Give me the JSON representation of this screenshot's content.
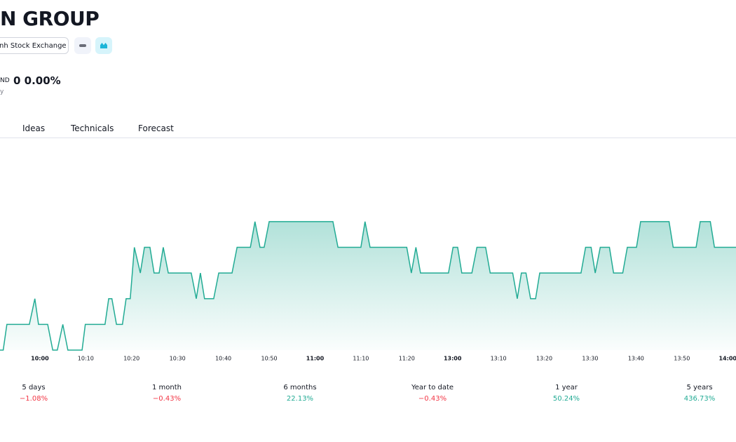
{
  "header": {
    "title": "N GROUP",
    "exchange": "nh Stock Exchange",
    "currency": "ND",
    "price_change": "0 0.00%",
    "note": "y"
  },
  "tabs": [
    "Ideas",
    "Technicals",
    "Forecast"
  ],
  "chart_data": {
    "type": "line",
    "color": "#22ab94",
    "x": [
      -8.7,
      -8,
      -7.2,
      -2.3,
      -1.1,
      -0.3,
      1.7,
      2.8,
      3.8,
      5,
      6.1,
      9.2,
      9.9,
      14.2,
      15,
      15.7,
      16.7,
      18,
      18.8,
      19.7,
      20.6,
      21.9,
      22.8,
      24,
      24.9,
      26,
      26.9,
      28,
      33,
      34.1,
      35,
      35.9,
      37.9,
      39,
      41.9,
      43,
      45.9,
      46.9,
      48,
      48.9,
      50,
      63.9,
      65,
      70,
      70.9,
      72,
      80,
      81,
      82,
      83,
      89.1,
      90.1,
      91.1,
      92,
      94.2,
      95.3,
      97.2,
      98.2,
      103.1,
      104.1,
      105,
      106,
      107,
      108.1,
      109,
      118,
      119,
      120.2,
      121.1,
      122.2,
      124.2,
      125.1,
      127.1,
      128.1,
      130.1,
      131,
      137.2,
      138.1,
      143.1,
      144,
      146.2,
      147.1,
      151.8
    ],
    "values": [
      0,
      0,
      1,
      1,
      2,
      1,
      1,
      0,
      0,
      1,
      0,
      0,
      1,
      1,
      2,
      2,
      1,
      1,
      2,
      2,
      4,
      3,
      4,
      4,
      3,
      3,
      4,
      3,
      3,
      2,
      3,
      2,
      2,
      3,
      3,
      4,
      4,
      5,
      4,
      4,
      5,
      5,
      4,
      4,
      5,
      4,
      4,
      3,
      4,
      3,
      3,
      4,
      4,
      3,
      3,
      4,
      4,
      3,
      3,
      2,
      3,
      3,
      2,
      2,
      3,
      3,
      4,
      4,
      3,
      4,
      4,
      3,
      3,
      4,
      4,
      5,
      5,
      4,
      4,
      5,
      5,
      4,
      4
    ],
    "xlim": [
      -8.7,
      151.8
    ],
    "ylim": [
      0,
      8
    ],
    "xticks": [
      {
        "value": 0,
        "label": "10:00"
      },
      {
        "value": 10,
        "label": "10:10"
      },
      {
        "value": 20,
        "label": "10:20"
      },
      {
        "value": 30,
        "label": "10:30"
      },
      {
        "value": 40,
        "label": "10:40"
      },
      {
        "value": 50,
        "label": "10:50"
      },
      {
        "value": 60,
        "label": "11:00"
      },
      {
        "value": 70,
        "label": "11:10"
      },
      {
        "value": 80,
        "label": "11:20"
      },
      {
        "value": 90,
        "label": "13:00"
      },
      {
        "value": 100,
        "label": "13:10"
      },
      {
        "value": 110,
        "label": "13:20"
      },
      {
        "value": 120,
        "label": "13:30"
      },
      {
        "value": 130,
        "label": "13:40"
      },
      {
        "value": 140,
        "label": "13:50"
      },
      {
        "value": 150,
        "label": "14:00"
      }
    ]
  },
  "performance": [
    {
      "period": "5 days",
      "change": "−1.08%"
    },
    {
      "period": "1 month",
      "change": "−0.43%"
    },
    {
      "period": "6 months",
      "change": "22.13%"
    },
    {
      "period": "Year to date",
      "change": "−0.43%"
    },
    {
      "period": "1 year",
      "change": "50.24%"
    },
    {
      "period": "5 years",
      "change": "436.73%"
    }
  ]
}
